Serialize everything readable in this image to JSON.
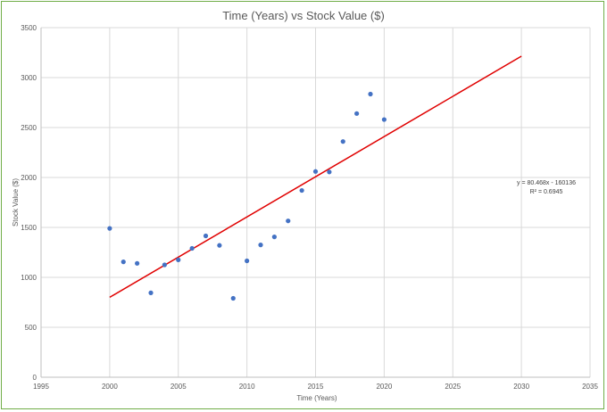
{
  "chart_data": {
    "type": "scatter",
    "title": "Time (Years) vs Stock Value ($)",
    "xlabel": "Time (Years)",
    "ylabel": "Stock Value ($)",
    "xlim": [
      1995,
      2035
    ],
    "ylim": [
      0,
      3500
    ],
    "x_ticks": [
      1995,
      2000,
      2005,
      2010,
      2015,
      2020,
      2025,
      2030,
      2035
    ],
    "y_ticks": [
      0,
      500,
      1000,
      1500,
      2000,
      2500,
      3000,
      3500
    ],
    "grid": true,
    "legend": "none",
    "colors": {
      "points": "#4472c4",
      "trendline": "#e00000",
      "gridlines": "#d9d9d9",
      "frame": "#70ad47"
    },
    "points": [
      {
        "x": 2000,
        "y": 1490
      },
      {
        "x": 2001,
        "y": 1155
      },
      {
        "x": 2002,
        "y": 1140
      },
      {
        "x": 2003,
        "y": 845
      },
      {
        "x": 2004,
        "y": 1125
      },
      {
        "x": 2005,
        "y": 1175
      },
      {
        "x": 2006,
        "y": 1290
      },
      {
        "x": 2007,
        "y": 1415
      },
      {
        "x": 2008,
        "y": 1320
      },
      {
        "x": 2009,
        "y": 790
      },
      {
        "x": 2010,
        "y": 1165
      },
      {
        "x": 2011,
        "y": 1325
      },
      {
        "x": 2012,
        "y": 1405
      },
      {
        "x": 2013,
        "y": 1565
      },
      {
        "x": 2014,
        "y": 1870
      },
      {
        "x": 2015,
        "y": 2060
      },
      {
        "x": 2016,
        "y": 2055
      },
      {
        "x": 2017,
        "y": 2360
      },
      {
        "x": 2018,
        "y": 2640
      },
      {
        "x": 2019,
        "y": 2835
      },
      {
        "x": 2020,
        "y": 2580
      }
    ],
    "trendline": {
      "type": "linear",
      "slope": 80.468,
      "intercept": -160136,
      "x_range": [
        2000,
        2030
      ],
      "equation_label": "y = 80.468x - 160136",
      "r2_label": "R² = 0.6945"
    }
  }
}
